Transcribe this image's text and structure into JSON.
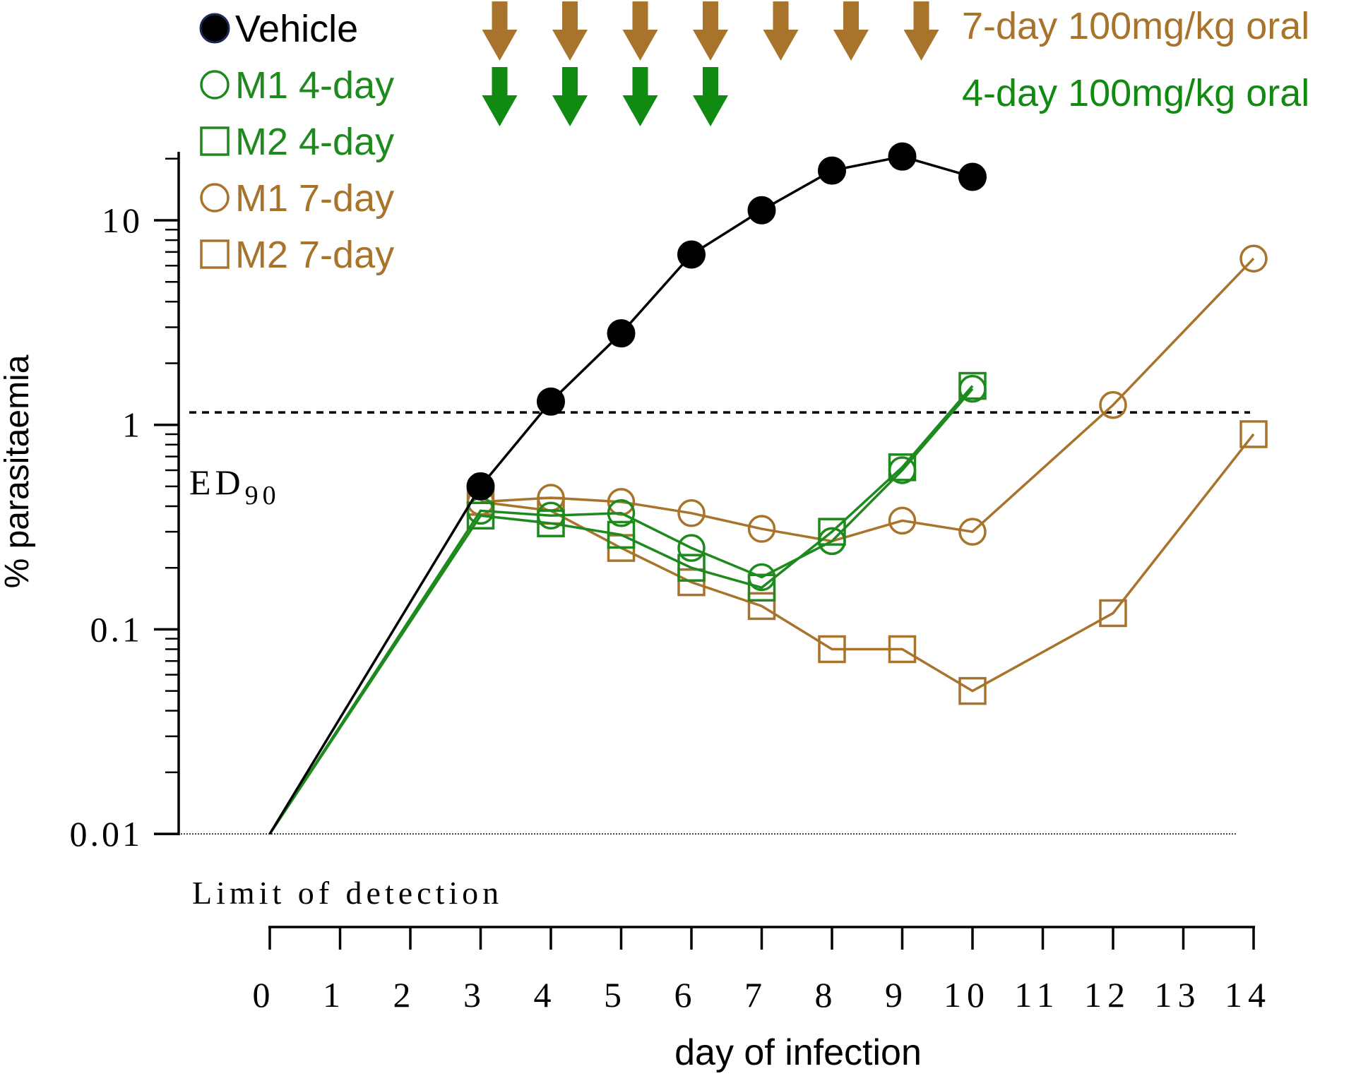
{
  "chart_data": {
    "type": "line",
    "yscale": "log",
    "xlabel": "day of infection",
    "ylabel": "% parasitaemia",
    "ylim": [
      0.01,
      20
    ],
    "xlim": [
      0,
      14
    ],
    "x_ticks": [
      "0",
      "1",
      "2",
      "3",
      "4",
      "5",
      "6",
      "7",
      "8",
      "9",
      "10",
      "11",
      "12",
      "13",
      "14"
    ],
    "y_ticks": [
      {
        "value": 0.01,
        "label": "0.01"
      },
      {
        "value": 0.1,
        "label": "0.1"
      },
      {
        "value": 1,
        "label": "1"
      },
      {
        "value": 10,
        "label": "10"
      }
    ],
    "threshold": {
      "value": 1.15,
      "label": "ED",
      "subscript": "90"
    },
    "lower_limit": {
      "value": 0.01,
      "label": "Limit of detection"
    },
    "series": [
      {
        "name": "Vehicle",
        "legend_label": "Vehicle",
        "color": "#000000",
        "marker": "filled-circle",
        "x": [
          0,
          3,
          4,
          5,
          6,
          7,
          8,
          9,
          10
        ],
        "y": [
          0.01,
          0.5,
          1.3,
          2.8,
          6.8,
          11.2,
          17.5,
          20.5,
          16.3
        ]
      },
      {
        "name": "M1 4-day",
        "legend_label": "M1 4-day",
        "color": "#1e8a1e",
        "marker": "open-circle",
        "x": [
          0,
          3,
          4,
          5,
          6,
          7,
          8,
          9,
          10
        ],
        "y": [
          0.01,
          0.38,
          0.36,
          0.37,
          0.25,
          0.18,
          0.27,
          0.6,
          1.5
        ]
      },
      {
        "name": "M2 4-day",
        "legend_label": "M2 4-day",
        "color": "#1e8a1e",
        "marker": "open-square",
        "x": [
          0,
          3,
          4,
          5,
          6,
          7,
          8,
          9,
          10
        ],
        "y": [
          0.01,
          0.36,
          0.33,
          0.29,
          0.2,
          0.16,
          0.3,
          0.62,
          1.55
        ]
      },
      {
        "name": "M1 7-day",
        "legend_label": "M1 7-day",
        "color": "#a8732b",
        "marker": "open-circle",
        "x": [
          3,
          4,
          5,
          6,
          7,
          8,
          9,
          10,
          12,
          14
        ],
        "y": [
          0.42,
          0.44,
          0.42,
          0.37,
          0.31,
          0.27,
          0.34,
          0.3,
          1.25,
          6.5
        ]
      },
      {
        "name": "M2 7-day",
        "legend_label": "M2 7-day",
        "color": "#a8732b",
        "marker": "open-square",
        "x": [
          3,
          4,
          5,
          6,
          7,
          8,
          9,
          10,
          12,
          14
        ],
        "y": [
          0.42,
          0.38,
          0.25,
          0.17,
          0.13,
          0.08,
          0.08,
          0.05,
          0.12,
          0.9
        ]
      }
    ],
    "dosing": [
      {
        "label": "7-day 100mg/kg oral",
        "color": "#a8732b",
        "days": [
          3,
          4,
          5,
          6,
          7,
          8,
          9
        ]
      },
      {
        "label": "4-day 100mg/kg oral",
        "color": "#118a11",
        "days": [
          3,
          4,
          5,
          6
        ]
      }
    ]
  }
}
